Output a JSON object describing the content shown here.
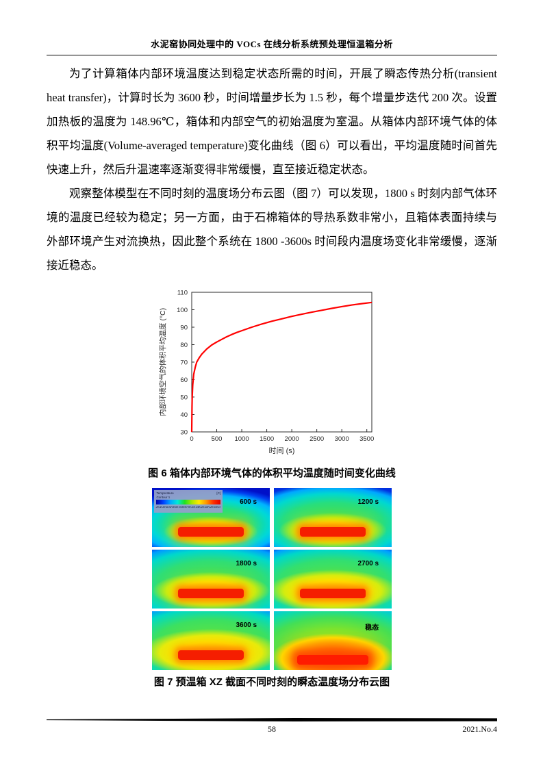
{
  "header": {
    "title": "水泥窑协同处理中的 VOCs 在线分析系统预处理恒温箱分析"
  },
  "paragraphs": [
    "为了计算箱体内部环境温度达到稳定状态所需的时间，开展了瞬态传热分析(transient heat transfer)，计算时长为 3600 秒，时间增量步长为 1.5 秒，每个增量步迭代 200 次。设置加热板的温度为 148.96℃，箱体和内部空气的初始温度为室温。从箱体内部环境气体的体积平均温度(Volume-averaged temperature)变化曲线（图 6）可以看出，平均温度随时间首先快速上升，然后升温速率逐渐变得非常缓慢，直至接近稳定状态。",
    "观察整体模型在不同时刻的温度场分布云图（图 7）可以发现，1800 s 时刻内部气体环境的温度已经较为稳定；另一方面，由于石棉箱体的导热系数非常小，且箱体表面持续与外部环境产生对流换热，因此整个系统在 1800 -3600s 时间段内温度场变化非常缓慢，逐渐接近稳态。"
  ],
  "chart_data": {
    "type": "line",
    "title": "",
    "xlabel": "时间 (s)",
    "ylabel": "内部环境空气的体积平均温度 (°C)",
    "xlim": [
      0,
      3600
    ],
    "ylim": [
      30,
      110
    ],
    "xticks": [
      0,
      500,
      1000,
      1500,
      2000,
      2500,
      3000,
      3500
    ],
    "yticks": [
      30,
      40,
      50,
      60,
      70,
      80,
      90,
      100,
      110
    ],
    "grid": false,
    "legend_position": "none",
    "series": [
      {
        "name": "体积平均温度",
        "color": "#ff0000",
        "x": [
          0,
          5,
          10,
          20,
          40,
          70,
          100,
          150,
          200,
          300,
          400,
          500,
          600,
          700,
          800,
          900,
          1000,
          1200,
          1400,
          1600,
          1800,
          2000,
          2200,
          2400,
          2600,
          2800,
          3000,
          3200,
          3400,
          3600
        ],
        "y": [
          30,
          44,
          50,
          57,
          63,
          67,
          70,
          72.5,
          74.5,
          77.5,
          79.8,
          81.5,
          83,
          84.5,
          85.8,
          87,
          88,
          90,
          91.8,
          93.4,
          94.8,
          96.2,
          97.4,
          98.6,
          99.7,
          100.8,
          101.8,
          102.7,
          103.5,
          104.2
        ]
      }
    ]
  },
  "figure6": {
    "caption": "图 6 箱体内部环境气体的体积平均温度随时间变化曲线"
  },
  "figure7": {
    "caption": "图 7 预温箱 XZ 截面不同时刻的瞬态温度场分布云图",
    "legend": {
      "title_line1": "Temperature",
      "title_line2": "Contour 1",
      "unit": "[C]",
      "ticks_text": "25 32 39 46 52 59 66 73 80 87 94 101 108 115 122 129 136 142 149"
    },
    "panels": [
      {
        "label": "600 s"
      },
      {
        "label": "1200 s"
      },
      {
        "label": "1800 s"
      },
      {
        "label": "2700 s"
      },
      {
        "label": "3600 s"
      },
      {
        "label": "稳态"
      }
    ]
  },
  "footer": {
    "page_number": "58",
    "issue": "2021.No.4"
  }
}
